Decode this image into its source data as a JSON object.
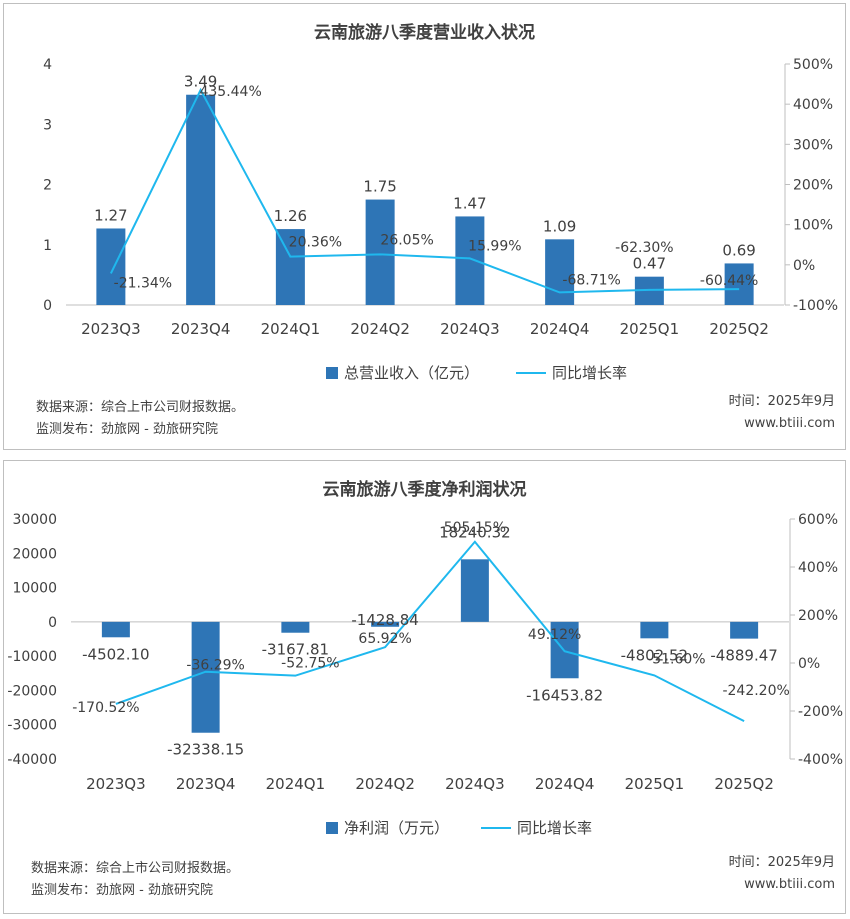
{
  "colors": {
    "bar": "#2e75b6",
    "line": "#1fb8ee",
    "axis": "#bfbfbf",
    "text": "#404040"
  },
  "footer": {
    "source": "数据来源：综合上市公司财报数据。",
    "publisher": "监测发布：劲旅网 - 劲旅研究院",
    "time": "时间：2025年9月",
    "site": "www.btiii.com"
  },
  "chart_data": [
    {
      "type": "bar",
      "title": "云南旅游八季度营业收入状况",
      "categories": [
        "2023Q3",
        "2023Q4",
        "2024Q1",
        "2024Q2",
        "2024Q3",
        "2024Q4",
        "2025Q1",
        "2025Q2"
      ],
      "series": [
        {
          "name": "总营业收入（亿元）",
          "type": "bar",
          "axis": "left",
          "values": [
            1.27,
            3.49,
            1.26,
            1.75,
            1.47,
            1.09,
            0.47,
            0.69
          ],
          "labels": [
            "1.27",
            "3.49",
            "1.26",
            "1.75",
            "1.47",
            "1.09",
            "0.47",
            "0.69"
          ]
        },
        {
          "name": "同比增长率",
          "type": "line",
          "axis": "right",
          "values": [
            -21.34,
            435.44,
            20.36,
            26.05,
            15.99,
            -68.71,
            -62.3,
            -60.44
          ],
          "labels": [
            "-21.34%",
            "435.44%",
            "20.36%",
            "26.05%",
            "15.99%",
            "-68.71%",
            "-62.30%",
            "-60.44%"
          ]
        }
      ],
      "ylim_left": [
        0,
        4
      ],
      "yticks_left": [
        "0",
        "1",
        "2",
        "3",
        "4"
      ],
      "ylim_right": [
        -100,
        500
      ],
      "yticks_right": [
        "-100%",
        "0%",
        "100%",
        "200%",
        "300%",
        "400%",
        "500%"
      ],
      "legend": "bottom"
    },
    {
      "type": "bar",
      "title": "云南旅游八季度净利润状况",
      "categories": [
        "2023Q3",
        "2023Q4",
        "2024Q1",
        "2024Q2",
        "2024Q3",
        "2024Q4",
        "2025Q1",
        "2025Q2"
      ],
      "series": [
        {
          "name": "净利润（万元）",
          "type": "bar",
          "axis": "left",
          "values": [
            -4502.1,
            -32338.15,
            -3167.81,
            -1428.84,
            18240.32,
            -16453.82,
            -4802.52,
            -4889.47
          ],
          "labels": [
            "-4502.10",
            "-32338.15",
            "-3167.81",
            "-1428.84",
            "18240.32",
            "-16453.82",
            "-4802.52",
            "-4889.47"
          ]
        },
        {
          "name": "同比增长率",
          "type": "line",
          "axis": "right",
          "values": [
            -170.52,
            -36.29,
            -52.75,
            65.92,
            505.15,
            49.12,
            -51.6,
            -242.2
          ],
          "labels": [
            "-170.52%",
            "-36.29%",
            "-52.75%",
            "65.92%",
            "505.15%",
            "49.12%",
            "-51.60%",
            "-242.20%"
          ]
        }
      ],
      "ylim_left": [
        -40000,
        30000
      ],
      "yticks_left": [
        "-40000",
        "-30000",
        "-20000",
        "-10000",
        "0",
        "10000",
        "20000",
        "30000"
      ],
      "ylim_right": [
        -400,
        600
      ],
      "yticks_right": [
        "-400%",
        "-200%",
        "0%",
        "200%",
        "400%",
        "600%"
      ],
      "legend": "bottom"
    }
  ]
}
